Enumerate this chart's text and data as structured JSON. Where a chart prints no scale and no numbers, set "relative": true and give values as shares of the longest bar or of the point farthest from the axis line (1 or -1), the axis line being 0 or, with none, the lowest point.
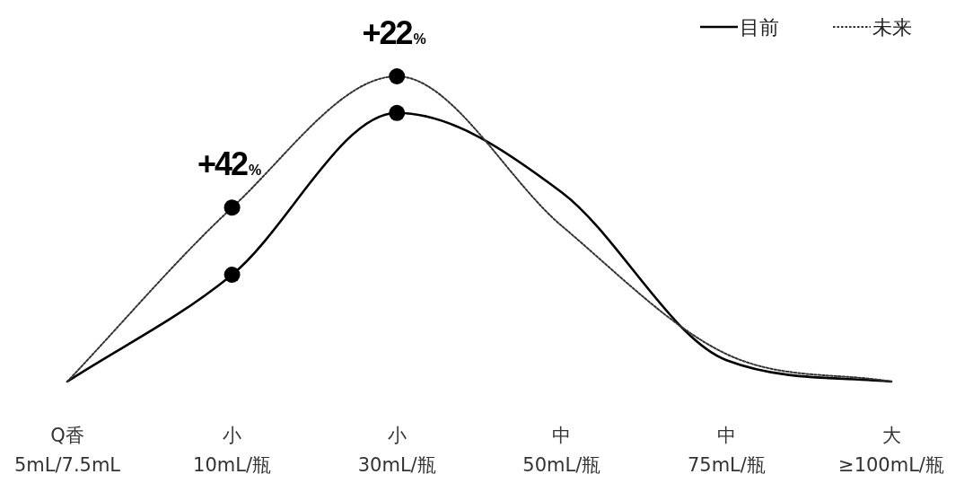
{
  "chart_data": {
    "type": "line",
    "relative": true,
    "legend": "top right",
    "categories": [
      "Q香\n5mL/7.5mL",
      "小\n10mL/瓶",
      "小\n30mL/瓶",
      "中\n50mL/瓶",
      "中\n75mL/瓶",
      "大\n≥100mL/瓶"
    ],
    "series": [
      {
        "name": "目前",
        "color": "#000000",
        "line_style": "solid",
        "values": [
          0,
          0.35,
          0.88,
          0.62,
          0.07,
          0
        ]
      },
      {
        "name": "未来",
        "color": "#333333",
        "line_style": "dotted",
        "values": [
          0,
          0.57,
          1.0,
          0.51,
          0.09,
          0
        ]
      },
      {
        "type": "scatter",
        "color": "#000000",
        "marker": "circle",
        "x": [
          "小\n10mL/瓶",
          "小\n30mL/瓶"
        ],
        "values": [
          0.35,
          0.88
        ]
      },
      {
        "type": "scatter",
        "color": "#000000",
        "marker": "circle",
        "x": [
          "小\n10mL/瓶",
          "小\n30mL/瓶"
        ],
        "values": [
          0.57,
          1.0
        ]
      }
    ],
    "annotations": [
      {
        "text": "+42%",
        "x": "小\n10mL/瓶",
        "y": 0.57
      },
      {
        "text": "+22%",
        "x": "小\n30mL/瓶",
        "y": 1.0
      }
    ]
  }
}
